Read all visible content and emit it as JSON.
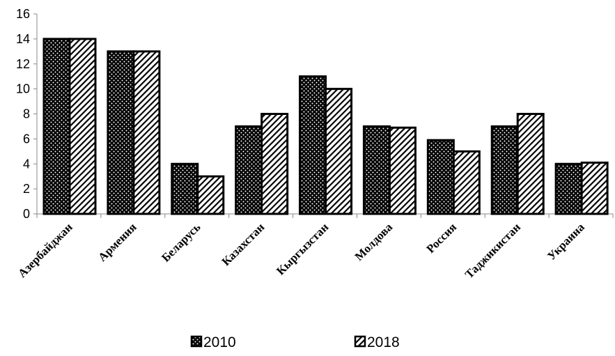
{
  "chart_data": {
    "type": "bar",
    "title": "",
    "xlabel": "",
    "ylabel": "",
    "categories": [
      "Азербайджан",
      "Армения",
      "Беларусь",
      "Казахстан",
      "Кыргызстан",
      "Молдова",
      "Россия",
      "Таджикистан",
      "Украина"
    ],
    "series": [
      {
        "name": "2010",
        "values": [
          14,
          13,
          4,
          7,
          11,
          7,
          5.9,
          7,
          4
        ]
      },
      {
        "name": "2018",
        "values": [
          14,
          13,
          3,
          8,
          10,
          6.9,
          5,
          8,
          4.1
        ]
      }
    ],
    "ylim": [
      0,
      16
    ],
    "yticks": [
      "0",
      "2",
      "4",
      "6",
      "8",
      "10",
      "12",
      "14",
      "16"
    ],
    "grid": false,
    "legend_position": "bottom"
  }
}
